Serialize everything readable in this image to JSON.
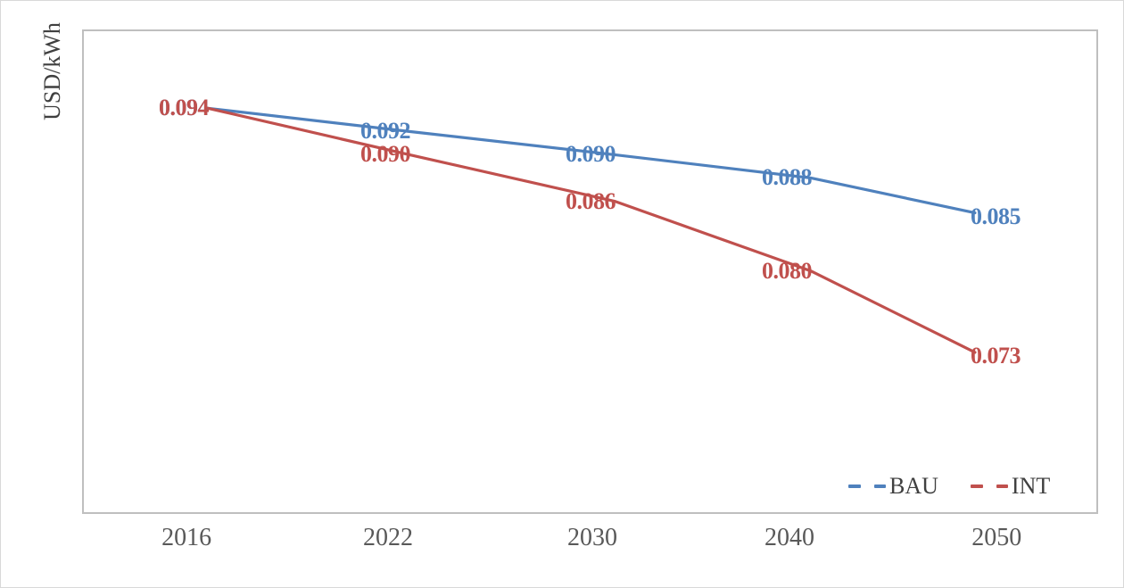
{
  "chart_data": {
    "type": "line",
    "title": "",
    "xlabel": "",
    "ylabel": "USD/kWh",
    "categories": [
      "2016",
      "2022",
      "2030",
      "2040",
      "2050"
    ],
    "series": [
      {
        "name": "BAU",
        "color": "#4F81BD",
        "values": [
          0.094,
          0.092,
          0.09,
          0.088,
          0.085
        ],
        "labels": [
          "0.094",
          "0.092",
          "0.090",
          "0.088",
          "0.085"
        ]
      },
      {
        "name": "INT",
        "color": "#C0504D",
        "values": [
          0.094,
          0.09,
          0.086,
          0.08,
          0.073
        ],
        "labels": [
          "0.094",
          "0.090",
          "0.086",
          "0.080",
          "0.073"
        ]
      }
    ],
    "ylim": [
      0.0591,
      0.1007
    ],
    "grid": false,
    "y_tick_labels_visible": false,
    "legend_position": "bottom-right",
    "legend_sample_style": "dashed",
    "plot_border_color": "#BFBFBF",
    "tick_text_color": "#595959",
    "legend_text_color": "#404040"
  }
}
